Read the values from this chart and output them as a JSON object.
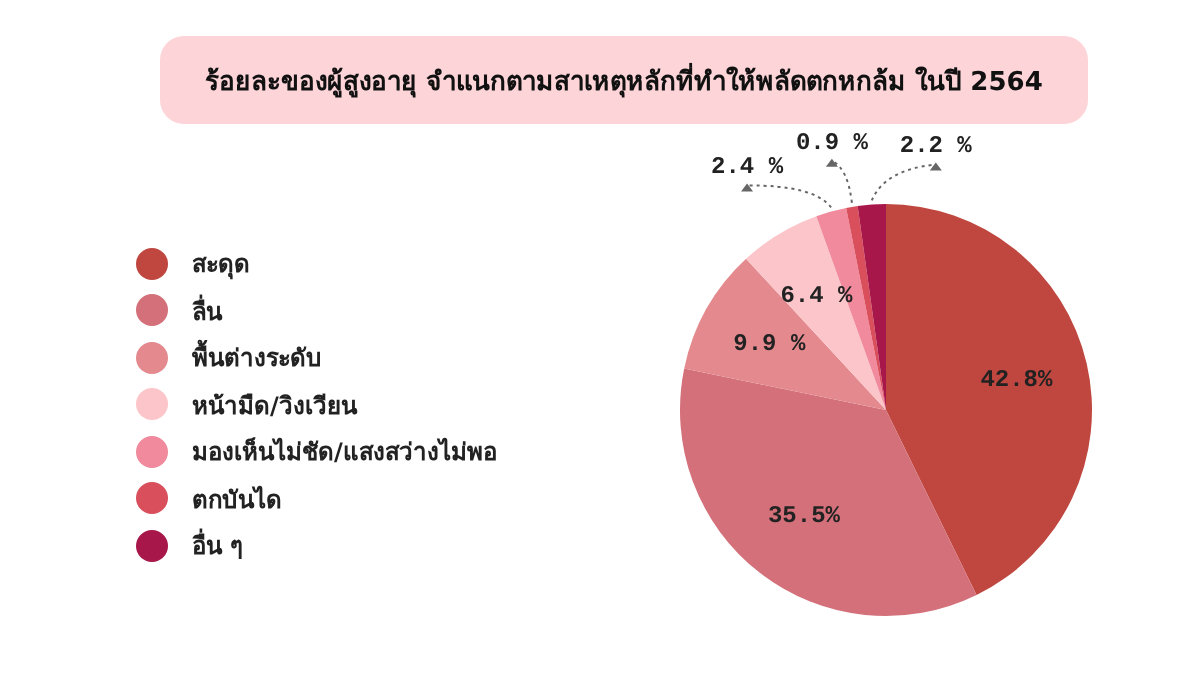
{
  "chart_data": {
    "type": "pie",
    "title": "ร้อยละของผู้สูงอายุ จำแนกตามสาเหตุหลักที่ทำให้พลัดตกหกล้ม ในปี 2564",
    "categories": [
      "สะดุด",
      "ลื่น",
      "พื้นต่างระดับ",
      "หน้ามืด/วิงเวียน",
      "มองเห็นไม่ชัด/แสงสว่างไม่พอ",
      "ตกบันได",
      "อื่น ๆ"
    ],
    "values": [
      42.8,
      35.5,
      9.9,
      6.4,
      2.4,
      0.9,
      2.2
    ],
    "colors": [
      "#c0473f",
      "#d4707a",
      "#e48a8f",
      "#fcc5ca",
      "#f08a9c",
      "#d94f5c",
      "#a8174a"
    ],
    "value_labels": [
      "42.8%",
      "35.5%",
      "9.9 %",
      "6.4 %",
      "2.4 %",
      "0.9 %",
      "2.2 %"
    ],
    "legend": "left"
  }
}
